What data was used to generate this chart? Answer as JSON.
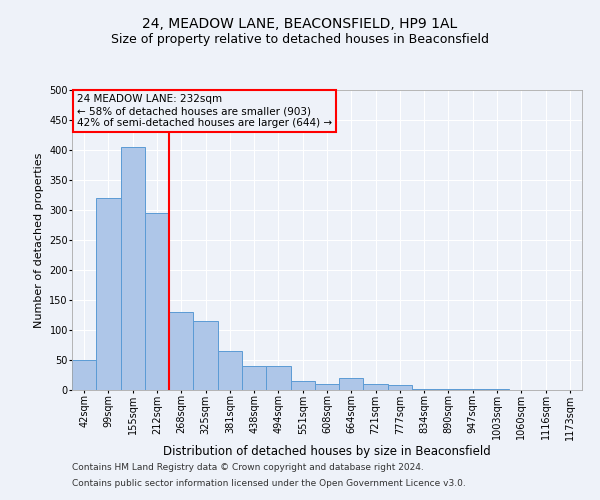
{
  "title1": "24, MEADOW LANE, BEACONSFIELD, HP9 1AL",
  "title2": "Size of property relative to detached houses in Beaconsfield",
  "xlabel": "Distribution of detached houses by size in Beaconsfield",
  "ylabel": "Number of detached properties",
  "footer1": "Contains HM Land Registry data © Crown copyright and database right 2024.",
  "footer2": "Contains public sector information licensed under the Open Government Licence v3.0.",
  "categories": [
    "42sqm",
    "99sqm",
    "155sqm",
    "212sqm",
    "268sqm",
    "325sqm",
    "381sqm",
    "438sqm",
    "494sqm",
    "551sqm",
    "608sqm",
    "664sqm",
    "721sqm",
    "777sqm",
    "834sqm",
    "890sqm",
    "947sqm",
    "1003sqm",
    "1060sqm",
    "1116sqm",
    "1173sqm"
  ],
  "values": [
    50,
    320,
    405,
    295,
    130,
    115,
    65,
    40,
    40,
    15,
    10,
    20,
    10,
    8,
    2,
    2,
    2,
    2,
    0,
    0,
    0
  ],
  "bar_color": "#aec6e8",
  "bar_edge_color": "#5b9bd5",
  "ylim": [
    0,
    500
  ],
  "yticks": [
    0,
    50,
    100,
    150,
    200,
    250,
    300,
    350,
    400,
    450,
    500
  ],
  "property_name": "24 MEADOW LANE: 232sqm",
  "line1": "← 58% of detached houses are smaller (903)",
  "line2": "42% of semi-detached houses are larger (644) →",
  "vline_position": 3.5,
  "bg_color": "#eef2f9",
  "grid_color": "#ffffff",
  "title_fontsize": 10,
  "subtitle_fontsize": 9,
  "tick_fontsize": 7,
  "xlabel_fontsize": 8.5,
  "ylabel_fontsize": 8,
  "annotation_fontsize": 7.5,
  "footer_fontsize": 6.5
}
